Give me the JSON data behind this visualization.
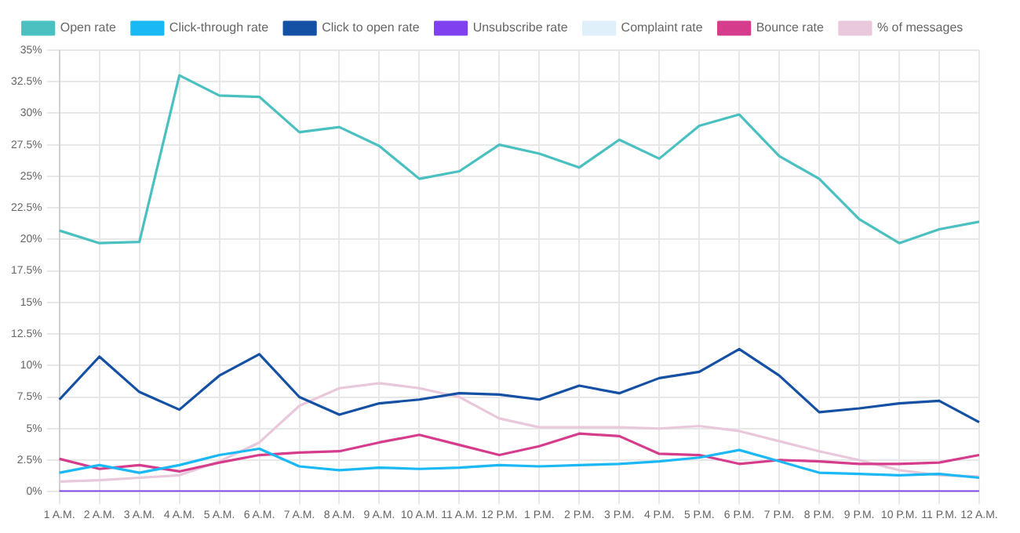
{
  "chart_data": {
    "type": "line",
    "categories": [
      "1 A.M.",
      "2 A.M.",
      "3 A.M.",
      "4 A.M.",
      "5 A.M.",
      "6 A.M.",
      "7 A.M.",
      "8 A.M.",
      "9 A.M.",
      "10 A.M.",
      "11 A.M.",
      "12 P.M.",
      "1 P.M.",
      "2 P.M.",
      "3 P.M.",
      "4 P.M.",
      "5 P.M.",
      "6 P.M.",
      "7 P.M.",
      "8 P.M.",
      "9 P.M.",
      "10 P.M.",
      "11 P.M.",
      "12 A.M."
    ],
    "series": [
      {
        "name": "Open rate",
        "color": "#4bc0c0",
        "values": [
          20.7,
          19.7,
          19.8,
          33.0,
          31.4,
          31.3,
          28.5,
          28.9,
          27.4,
          24.8,
          25.4,
          27.5,
          26.8,
          25.7,
          27.9,
          26.4,
          29.0,
          29.9,
          26.6,
          24.8,
          21.6,
          19.7,
          20.8,
          21.4
        ]
      },
      {
        "name": "Click-through rate",
        "color": "#1ab8f5",
        "values": [
          1.5,
          2.1,
          1.5,
          2.1,
          2.9,
          3.4,
          2.0,
          1.7,
          1.9,
          1.8,
          1.9,
          2.1,
          2.0,
          2.1,
          2.2,
          2.4,
          2.7,
          3.3,
          2.4,
          1.5,
          1.4,
          1.3,
          1.4,
          1.1
        ]
      },
      {
        "name": "Click to open rate",
        "color": "#1450a3",
        "values": [
          7.3,
          10.7,
          7.9,
          6.5,
          9.2,
          10.9,
          7.5,
          6.1,
          7.0,
          7.3,
          7.8,
          7.7,
          7.3,
          8.4,
          7.8,
          9.0,
          9.5,
          11.3,
          9.2,
          6.3,
          6.6,
          7.0,
          7.2,
          5.5
        ]
      },
      {
        "name": "Unsubscribe rate",
        "color": "#8040f0",
        "values": [
          0,
          0,
          0,
          0,
          0,
          0,
          0,
          0,
          0,
          0,
          0,
          0,
          0,
          0,
          0,
          0,
          0,
          0,
          0,
          0,
          0,
          0,
          0,
          0
        ]
      },
      {
        "name": "Complaint rate",
        "color": "#dff0fb",
        "values": [
          null,
          null,
          null,
          null,
          null,
          null,
          null,
          null,
          null,
          null,
          null,
          null,
          null,
          null,
          null,
          null,
          null,
          null,
          null,
          null,
          null,
          null,
          null,
          null
        ]
      },
      {
        "name": "Bounce rate",
        "color": "#d63c8c",
        "values": [
          2.6,
          1.8,
          2.1,
          1.6,
          2.3,
          2.9,
          3.1,
          3.2,
          3.9,
          4.5,
          3.7,
          2.9,
          3.6,
          4.6,
          4.4,
          3.0,
          2.9,
          2.2,
          2.5,
          2.4,
          2.2,
          2.2,
          2.3,
          2.9
        ]
      },
      {
        "name": "% of messages",
        "color": "#e8c8da",
        "values": [
          0.8,
          0.9,
          1.1,
          1.3,
          2.4,
          3.9,
          6.8,
          8.2,
          8.6,
          8.2,
          7.5,
          5.8,
          5.1,
          5.1,
          5.1,
          5.0,
          5.2,
          4.8,
          4.0,
          3.2,
          2.5,
          1.7,
          1.3,
          1.2
        ]
      }
    ],
    "ylim": [
      0,
      35
    ],
    "yticks": [
      {
        "value": 0,
        "label": "0%"
      },
      {
        "value": 2.5,
        "label": "2.5%"
      },
      {
        "value": 5,
        "label": "5%"
      },
      {
        "value": 7.5,
        "label": "7.5%"
      },
      {
        "value": 10,
        "label": "10%"
      },
      {
        "value": 12.5,
        "label": "12.5%"
      },
      {
        "value": 15,
        "label": "15%"
      },
      {
        "value": 17.5,
        "label": "17.5%"
      },
      {
        "value": 20,
        "label": "20%"
      },
      {
        "value": 22.5,
        "label": "22.5%"
      },
      {
        "value": 25,
        "label": "25%"
      },
      {
        "value": 27.5,
        "label": "27.5%"
      },
      {
        "value": 30,
        "label": "30%"
      },
      {
        "value": 32.5,
        "label": "32.5%"
      },
      {
        "value": 35,
        "label": "35%"
      }
    ],
    "grid": true,
    "legend": "top",
    "marker": "none",
    "line_style": "solid"
  }
}
